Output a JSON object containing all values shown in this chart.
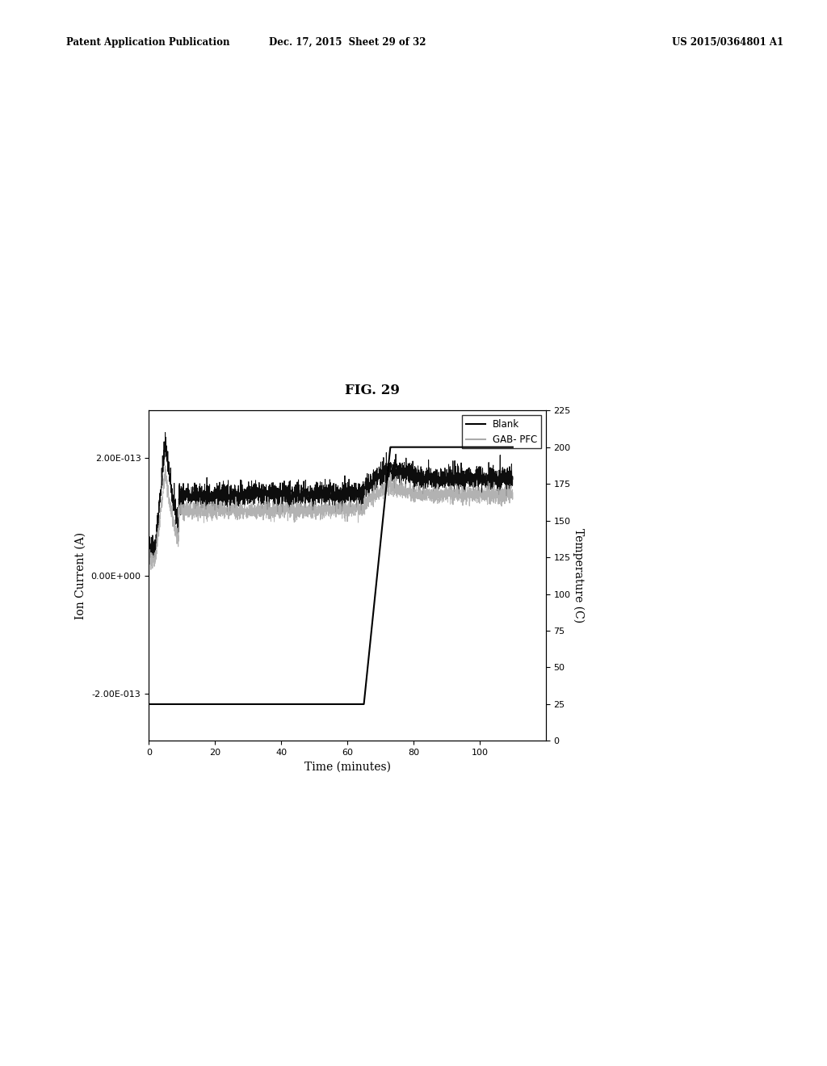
{
  "title": "FIG. 29",
  "xlabel": "Time (minutes)",
  "ylabel_left": "Ion Current (A)",
  "ylabel_right": "Temperature (C)",
  "xlim": [
    0,
    120
  ],
  "ylim_left": [
    -2.8e-13,
    2.8e-13
  ],
  "ylim_right": [
    0,
    225
  ],
  "yticks_left": [
    -2e-13,
    0.0,
    2e-13
  ],
  "ytick_labels_left": [
    "-2.00E-013",
    "0.00E+000",
    "2.00E-013"
  ],
  "yticks_right": [
    0,
    25,
    50,
    75,
    100,
    125,
    150,
    175,
    200,
    225
  ],
  "xticks": [
    0,
    20,
    40,
    60,
    80,
    100
  ],
  "legend_labels": [
    "Blank",
    "GAB- PFC"
  ],
  "blank_color": "#000000",
  "gabpfc_color": "#aaaaaa",
  "temp_color": "#000000",
  "background_color": "#ffffff",
  "header_left": "Patent Application Publication",
  "header_mid": "Dec. 17, 2015  Sheet 29 of 32",
  "header_right": "US 2015/0364801 A1",
  "temp_start_time": 65,
  "temp_end_time": 73,
  "temp_low": 25,
  "temp_high": 200
}
